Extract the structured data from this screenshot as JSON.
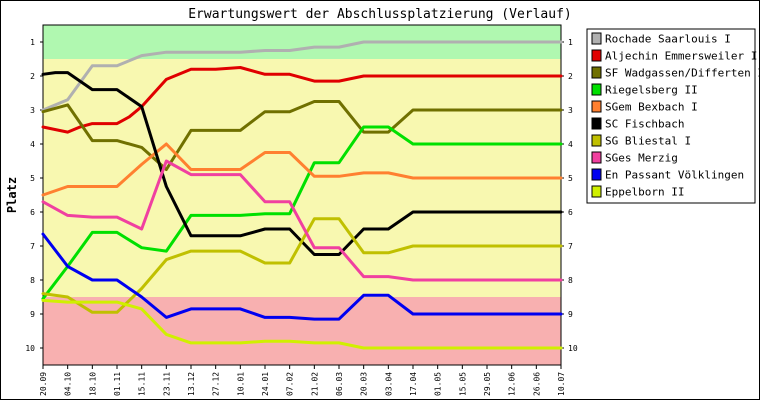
{
  "chart_data": {
    "type": "line",
    "title": "Erwartungswert der Abschlussplatzierung (Verlauf)",
    "ylabel": "Platz",
    "xlabel": "",
    "y_ticks": [
      "1",
      "2",
      "3",
      "4",
      "5",
      "6",
      "7",
      "8",
      "9",
      "10"
    ],
    "ylim": [
      0.5,
      10.5
    ],
    "y_reversed": true,
    "x_ticks": [
      "20.09",
      "04.10",
      "18.10",
      "01.11",
      "15.11",
      "23.11",
      "13.12",
      "27.12",
      "10.01",
      "24.01",
      "07.02",
      "21.02",
      "06.03",
      "20.03",
      "03.04",
      "17.04",
      "01.05",
      "15.05",
      "29.05",
      "12.06",
      "26.06",
      "10.07"
    ],
    "legend_position": "right",
    "zones": [
      {
        "from": 0.5,
        "to": 1.5,
        "color": "#b0f8b0"
      },
      {
        "from": 1.5,
        "to": 8.5,
        "color": "#f8f8b0"
      },
      {
        "from": 8.5,
        "to": 10.5,
        "color": "#f8b0b0"
      }
    ],
    "relegation_area": {
      "color": "#f8b0b0",
      "x": [
        0,
        0.75,
        1,
        1.5,
        2,
        2.5,
        3,
        3.5,
        4,
        4.5,
        5,
        5.5,
        6,
        6.5,
        7,
        7.5,
        8,
        8.5,
        9,
        9.5,
        10,
        10.5,
        11,
        11.5,
        12,
        12.5,
        13,
        13.5,
        14,
        14.5,
        15,
        15.5,
        16,
        17,
        18,
        19,
        20,
        21
      ],
      "y": [
        8.7,
        8.65,
        8.65,
        8.65,
        8.65,
        8.65,
        8.65,
        8.62,
        8.7,
        8.75,
        8.8,
        9.2,
        9.35,
        9.35,
        9.35,
        9.35,
        9.35,
        9.35,
        9.3,
        9.2,
        9.1,
        8.9,
        8.9,
        8.75,
        8.55,
        8.6,
        8.55,
        8.55,
        8.55,
        8.6,
        8.6,
        8.6,
        9.5,
        9.5,
        9.5,
        9.5,
        9.5,
        9.5
      ]
    },
    "series": [
      {
        "name": "Rochade Saarlouis I",
        "color": "#b0b0b0",
        "x": [
          0,
          1,
          2,
          3,
          4,
          5,
          6,
          7,
          8,
          9,
          10,
          11,
          12,
          13,
          14,
          15,
          16,
          17,
          18,
          19,
          20,
          21
        ],
        "y": [
          3.0,
          2.7,
          1.7,
          1.7,
          1.4,
          1.3,
          1.3,
          1.3,
          1.3,
          1.25,
          1.25,
          1.15,
          1.15,
          1.0,
          1.0,
          1.0,
          1.0,
          1.0,
          1.0,
          1.0,
          1.0,
          1.0
        ]
      },
      {
        "name": "Aljechin Emmersweiler I",
        "color": "#e00000",
        "x": [
          0,
          1,
          1.5,
          2,
          2.5,
          3,
          3.5,
          4,
          5,
          6,
          7,
          8,
          9,
          10,
          11,
          12,
          13,
          14,
          15,
          16,
          17,
          18,
          19,
          20,
          21
        ],
        "y": [
          3.5,
          3.65,
          3.5,
          3.4,
          3.4,
          3.4,
          3.2,
          2.9,
          2.1,
          1.8,
          1.8,
          1.75,
          1.95,
          1.95,
          2.15,
          2.15,
          2.0,
          2.0,
          2.0,
          2.0,
          2.0,
          2.0,
          2.0,
          2.0,
          2.0
        ]
      },
      {
        "name": "SF Wadgassen/Differten I",
        "color": "#707000",
        "x": [
          0,
          1,
          2,
          3,
          4,
          5,
          6,
          7,
          8,
          9,
          10,
          11,
          12,
          13,
          14,
          15,
          16,
          17,
          18,
          19,
          20,
          21
        ],
        "y": [
          3.05,
          2.85,
          3.9,
          3.9,
          4.1,
          4.75,
          3.6,
          3.6,
          3.6,
          3.05,
          3.05,
          2.75,
          2.75,
          3.65,
          3.65,
          3.0,
          3.0,
          3.0,
          3.0,
          3.0,
          3.0,
          3.0
        ]
      },
      {
        "name": "Riegelsberg II",
        "color": "#00e000",
        "x": [
          0,
          1,
          2,
          3,
          4,
          5,
          6,
          7,
          8,
          9,
          10,
          11,
          12,
          13,
          14,
          15,
          16,
          17,
          18,
          19,
          20,
          21
        ],
        "y": [
          8.55,
          7.6,
          6.6,
          6.6,
          7.05,
          7.15,
          6.1,
          6.1,
          6.1,
          6.05,
          6.05,
          4.55,
          4.55,
          3.5,
          3.5,
          4.0,
          4.0,
          4.0,
          4.0,
          4.0,
          4.0,
          4.0
        ]
      },
      {
        "name": "SGem Bexbach I",
        "color": "#ff8030",
        "x": [
          0,
          1,
          2,
          3,
          4,
          5,
          6,
          7,
          8,
          9,
          10,
          11,
          12,
          13,
          14,
          15,
          16,
          17,
          18,
          19,
          20,
          21
        ],
        "y": [
          5.5,
          5.25,
          5.25,
          5.25,
          4.6,
          4.0,
          4.75,
          4.75,
          4.75,
          4.25,
          4.25,
          4.95,
          4.95,
          4.85,
          4.85,
          5.0,
          5.0,
          5.0,
          5.0,
          5.0,
          5.0,
          5.0
        ]
      },
      {
        "name": "SC Fischbach",
        "color": "#000000",
        "x": [
          0,
          0.5,
          1,
          2,
          3,
          4,
          5,
          6,
          7,
          8,
          9,
          10,
          11,
          12,
          13,
          14,
          15,
          16,
          17,
          18,
          19,
          20,
          21
        ],
        "y": [
          1.95,
          1.9,
          1.9,
          2.4,
          2.4,
          2.9,
          5.25,
          6.7,
          6.7,
          6.7,
          6.5,
          6.5,
          7.25,
          7.25,
          6.5,
          6.5,
          6.0,
          6.0,
          6.0,
          6.0,
          6.0,
          6.0,
          6.0
        ]
      },
      {
        "name": "SG Bliestal I",
        "color": "#c0c000",
        "x": [
          0,
          1,
          2,
          3,
          4,
          5,
          6,
          7,
          8,
          9,
          10,
          11,
          12,
          13,
          14,
          15,
          16,
          17,
          18,
          19,
          20,
          21
        ],
        "y": [
          8.4,
          8.5,
          8.95,
          8.95,
          8.25,
          7.4,
          7.15,
          7.15,
          7.15,
          7.5,
          7.5,
          6.2,
          6.2,
          7.2,
          7.2,
          7.0,
          7.0,
          7.0,
          7.0,
          7.0,
          7.0,
          7.0
        ]
      },
      {
        "name": "SGes Merzig",
        "color": "#f040a0",
        "x": [
          0,
          1,
          2,
          3,
          4,
          5,
          6,
          7,
          8,
          9,
          10,
          11,
          12,
          13,
          14,
          15,
          16,
          17,
          18,
          19,
          20,
          21
        ],
        "y": [
          5.7,
          6.1,
          6.15,
          6.15,
          6.5,
          4.5,
          4.9,
          4.9,
          4.9,
          5.7,
          5.7,
          7.05,
          7.05,
          7.9,
          7.9,
          8.0,
          8.0,
          8.0,
          8.0,
          8.0,
          8.0,
          8.0
        ]
      },
      {
        "name": "En Passant Völklingen",
        "color": "#0000f0",
        "x": [
          0,
          1,
          2,
          3,
          4,
          5,
          6,
          7,
          8,
          9,
          10,
          11,
          12,
          13,
          14,
          15,
          16,
          17,
          18,
          19,
          20,
          21
        ],
        "y": [
          6.65,
          7.6,
          8.0,
          8.0,
          8.5,
          9.1,
          8.85,
          8.85,
          8.85,
          9.1,
          9.1,
          9.15,
          9.15,
          8.45,
          8.45,
          9.0,
          9.0,
          9.0,
          9.0,
          9.0,
          9.0,
          9.0
        ]
      },
      {
        "name": "Eppelborn II",
        "color": "#d0f000",
        "x": [
          0,
          1,
          2,
          3,
          4,
          5,
          6,
          7,
          8,
          9,
          10,
          11,
          12,
          13,
          14,
          15,
          16,
          17,
          18,
          19,
          20,
          21
        ],
        "y": [
          8.6,
          8.65,
          8.65,
          8.65,
          8.85,
          9.6,
          9.85,
          9.85,
          9.85,
          9.8,
          9.8,
          9.85,
          9.85,
          10.0,
          10.0,
          10.0,
          10.0,
          10.0,
          10.0,
          10.0,
          10.0,
          10.0
        ]
      }
    ]
  }
}
